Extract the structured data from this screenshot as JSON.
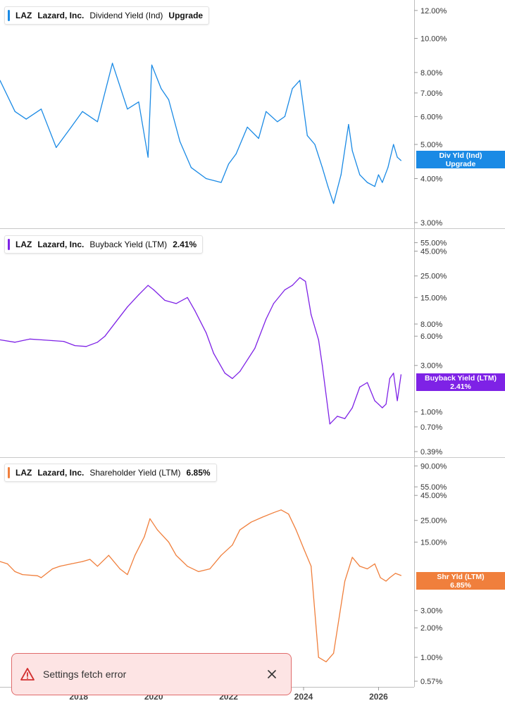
{
  "chart_data": [
    {
      "type": "line",
      "ticker": "LAZ",
      "company": "Lazard, Inc.",
      "metric": "Dividend Yield (Ind)",
      "value_label": "Upgrade",
      "tag_line1": "Div Yld (Ind)",
      "tag_line2": "Upgrade",
      "color": "#1a8ae5",
      "scale": "log",
      "ylim": [
        3.0,
        12.5
      ],
      "yticks": [
        "12.00%",
        "10.00%",
        "8.00%",
        "7.00%",
        "6.00%",
        "5.00%",
        "4.00%",
        "3.00%"
      ],
      "ytick_values": [
        12,
        10,
        8,
        7,
        6,
        5,
        4,
        3
      ],
      "last_value": 4.5,
      "x": [
        2015.9,
        2016.3,
        2016.6,
        2017.0,
        2017.4,
        2017.8,
        2018.1,
        2018.5,
        2018.9,
        2019.3,
        2019.6,
        2019.85,
        2019.95,
        2020.2,
        2020.4,
        2020.7,
        2021.0,
        2021.4,
        2021.8,
        2022.0,
        2022.2,
        2022.5,
        2022.8,
        2023.0,
        2023.3,
        2023.5,
        2023.7,
        2023.9,
        2024.1,
        2024.3,
        2024.5,
        2024.65,
        2024.8,
        2025.0,
        2025.2,
        2025.3,
        2025.5,
        2025.7,
        2025.9,
        2026.0,
        2026.1,
        2026.25,
        2026.4,
        2026.5,
        2026.6
      ],
      "y": [
        7.6,
        6.2,
        5.9,
        6.3,
        4.9,
        5.6,
        6.2,
        5.8,
        8.5,
        6.3,
        6.6,
        4.6,
        8.4,
        7.2,
        6.7,
        5.1,
        4.3,
        4.0,
        3.9,
        4.4,
        4.7,
        5.6,
        5.2,
        6.2,
        5.8,
        6.0,
        7.2,
        7.6,
        5.3,
        5.0,
        4.3,
        3.8,
        3.4,
        4.1,
        5.7,
        4.8,
        4.1,
        3.9,
        3.8,
        4.1,
        3.9,
        4.3,
        5.0,
        4.6,
        4.5
      ]
    },
    {
      "type": "line",
      "ticker": "LAZ",
      "company": "Lazard, Inc.",
      "metric": "Buyback Yield (LTM)",
      "value_label": "2.41%",
      "tag_line1": "Buyback Yield (LTM)",
      "tag_line2": "2.41%",
      "color": "#7e22e6",
      "scale": "log",
      "ylim": [
        0.39,
        70
      ],
      "yticks": [
        "55.00%",
        "45.00%",
        "25.00%",
        "15.00%",
        "8.00%",
        "6.00%",
        "3.00%",
        "1.00%",
        "0.70%",
        "0.39%"
      ],
      "ytick_values": [
        55,
        45,
        25,
        15,
        8,
        6,
        3,
        1,
        0.7,
        0.39
      ],
      "last_value": 2.41,
      "x": [
        2015.9,
        2016.3,
        2016.7,
        2017.0,
        2017.3,
        2017.6,
        2017.9,
        2018.2,
        2018.5,
        2018.7,
        2019.0,
        2019.3,
        2019.6,
        2019.85,
        2020.0,
        2020.3,
        2020.6,
        2020.9,
        2021.1,
        2021.4,
        2021.6,
        2021.9,
        2022.1,
        2022.3,
        2022.7,
        2023.0,
        2023.2,
        2023.5,
        2023.7,
        2023.9,
        2024.05,
        2024.2,
        2024.4,
        2024.5,
        2024.7,
        2024.9,
        2025.1,
        2025.3,
        2025.5,
        2025.7,
        2025.9,
        2026.0,
        2026.1,
        2026.2,
        2026.3,
        2026.4,
        2026.5,
        2026.6
      ],
      "y": [
        5.5,
        5.2,
        5.6,
        5.5,
        5.4,
        5.3,
        4.8,
        4.7,
        5.2,
        6.0,
        8.5,
        12.0,
        16.0,
        20.0,
        18.0,
        14.0,
        13.0,
        15.0,
        11.0,
        6.5,
        4.0,
        2.5,
        2.2,
        2.6,
        4.5,
        9.0,
        13.0,
        18.0,
        20.0,
        24.0,
        22.0,
        10.0,
        5.5,
        3.0,
        0.75,
        0.9,
        0.85,
        1.1,
        1.8,
        2.0,
        1.3,
        1.2,
        1.1,
        1.2,
        2.2,
        2.5,
        1.3,
        2.41
      ]
    },
    {
      "type": "line",
      "ticker": "LAZ",
      "company": "Lazard, Inc.",
      "metric": "Shareholder Yield (LTM)",
      "value_label": "6.85%",
      "tag_line1": "Shr Yld (LTM)",
      "tag_line2": "6.85%",
      "color": "#f07f3c",
      "scale": "log",
      "ylim": [
        0.57,
        100
      ],
      "yticks": [
        "90.00%",
        "55.00%",
        "45.00%",
        "25.00%",
        "15.00%",
        "3.00%",
        "2.00%",
        "1.00%",
        "0.57%"
      ],
      "ytick_values": [
        90,
        55,
        45,
        25,
        15,
        3,
        2,
        1,
        0.57
      ],
      "last_value": 6.85,
      "x": [
        2015.9,
        2016.1,
        2016.3,
        2016.5,
        2016.9,
        2017.0,
        2017.3,
        2017.5,
        2017.8,
        2018.1,
        2018.3,
        2018.5,
        2018.8,
        2019.1,
        2019.3,
        2019.5,
        2019.75,
        2019.9,
        2020.1,
        2020.4,
        2020.6,
        2020.9,
        2021.2,
        2021.5,
        2021.8,
        2022.1,
        2022.3,
        2022.6,
        2022.9,
        2023.2,
        2023.4,
        2023.6,
        2023.8,
        2024.0,
        2024.2,
        2024.4,
        2024.6,
        2024.8,
        2025.1,
        2025.3,
        2025.5,
        2025.7,
        2025.9,
        2026.05,
        2026.2,
        2026.3,
        2026.45,
        2026.6
      ],
      "y": [
        9.5,
        9.0,
        7.5,
        7.0,
        6.8,
        6.5,
        8.0,
        8.5,
        9.0,
        9.5,
        10.0,
        8.5,
        11.0,
        8.0,
        7.0,
        11.0,
        17.0,
        26.0,
        20.0,
        15.0,
        11.0,
        8.5,
        7.5,
        8.0,
        11.0,
        14.0,
        20.0,
        24.0,
        27.0,
        30.0,
        32.0,
        29.0,
        20.0,
        13.0,
        8.5,
        1.0,
        0.9,
        1.1,
        6.0,
        10.5,
        8.5,
        8.0,
        9.0,
        6.5,
        6.0,
        6.5,
        7.2,
        6.85
      ]
    }
  ],
  "x_axis": {
    "ticks": [
      "2018",
      "2020",
      "2022",
      "2024",
      "2026"
    ],
    "tick_values": [
      2018,
      2020,
      2022,
      2024,
      2026
    ],
    "range": [
      2015.9,
      2026.95
    ]
  },
  "toast": {
    "message": "Settings fetch error",
    "icon": "warning-triangle-icon",
    "close_icon": "close-icon"
  }
}
